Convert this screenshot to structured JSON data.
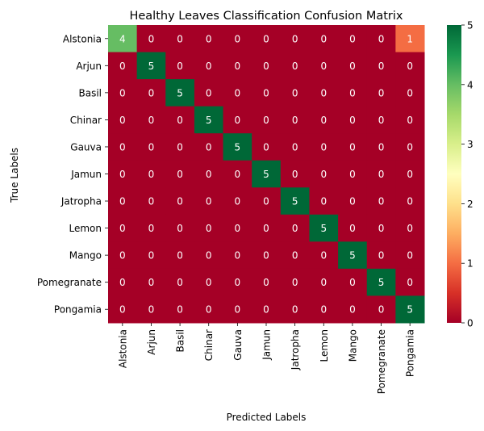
{
  "chart_data": {
    "type": "heatmap",
    "title": "Healthy Leaves Classification Confusion Matrix",
    "xlabel": "Predicted Labels",
    "ylabel": "True Labels",
    "x_categories": [
      "Alstonia",
      "Arjun",
      "Basil",
      "Chinar",
      "Gauva",
      "Jamun",
      "Jatropha",
      "Lemon",
      "Mango",
      "Pomegranate",
      "Pongamia"
    ],
    "y_categories": [
      "Alstonia",
      "Arjun",
      "Basil",
      "Chinar",
      "Gauva",
      "Jamun",
      "Jatropha",
      "Lemon",
      "Mango",
      "Pomegranate",
      "Pongamia"
    ],
    "values": [
      [
        4,
        0,
        0,
        0,
        0,
        0,
        0,
        0,
        0,
        0,
        1
      ],
      [
        0,
        5,
        0,
        0,
        0,
        0,
        0,
        0,
        0,
        0,
        0
      ],
      [
        0,
        0,
        5,
        0,
        0,
        0,
        0,
        0,
        0,
        0,
        0
      ],
      [
        0,
        0,
        0,
        5,
        0,
        0,
        0,
        0,
        0,
        0,
        0
      ],
      [
        0,
        0,
        0,
        0,
        5,
        0,
        0,
        0,
        0,
        0,
        0
      ],
      [
        0,
        0,
        0,
        0,
        0,
        5,
        0,
        0,
        0,
        0,
        0
      ],
      [
        0,
        0,
        0,
        0,
        0,
        0,
        5,
        0,
        0,
        0,
        0
      ],
      [
        0,
        0,
        0,
        0,
        0,
        0,
        0,
        5,
        0,
        0,
        0
      ],
      [
        0,
        0,
        0,
        0,
        0,
        0,
        0,
        0,
        5,
        0,
        0
      ],
      [
        0,
        0,
        0,
        0,
        0,
        0,
        0,
        0,
        0,
        5,
        0
      ],
      [
        0,
        0,
        0,
        0,
        0,
        0,
        0,
        0,
        0,
        0,
        5
      ]
    ],
    "colormap": "RdYlGn",
    "value_range": [
      0,
      5
    ],
    "colorbar_ticks": [
      0,
      1,
      2,
      3,
      4,
      5
    ]
  }
}
